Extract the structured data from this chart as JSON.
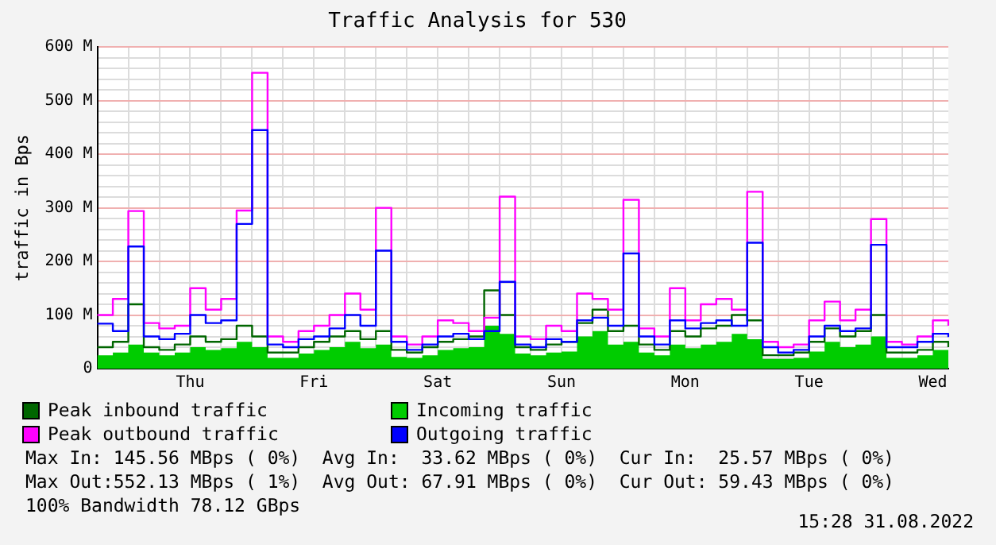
{
  "chart_data": {
    "type": "step",
    "title": "Traffic Analysis for 530",
    "ylabel": "traffic in Bps",
    "categories": [
      null,
      null,
      null,
      null,
      null,
      null,
      "Thu",
      null,
      null,
      null,
      null,
      null,
      null,
      null,
      "Fri",
      null,
      null,
      null,
      null,
      null,
      null,
      null,
      "Sat",
      null,
      null,
      null,
      null,
      null,
      null,
      null,
      "Sun",
      null,
      null,
      null,
      null,
      null,
      null,
      null,
      "Mon",
      null,
      null,
      null,
      null,
      null,
      null,
      null,
      "Tue",
      null,
      null,
      null,
      null,
      null,
      null,
      null,
      "Wed",
      null
    ],
    "ylim": [
      0,
      600
    ],
    "yticks": [
      0,
      {
        "value": 20,
        "label": null
      },
      {
        "value": 40,
        "label": null
      },
      {
        "value": 60,
        "label": null
      },
      {
        "value": 80,
        "label": null
      },
      {
        "value": 100,
        "label": "100 M"
      },
      {
        "value": 120,
        "label": null
      },
      {
        "value": 140,
        "label": null
      },
      {
        "value": 160,
        "label": null
      },
      {
        "value": 180,
        "label": null
      },
      {
        "value": 200,
        "label": "200 M"
      },
      {
        "value": 220,
        "label": null
      },
      {
        "value": 240,
        "label": null
      },
      {
        "value": 260,
        "label": null
      },
      {
        "value": 280,
        "label": null
      },
      {
        "value": 300,
        "label": "300 M"
      },
      {
        "value": 320,
        "label": null
      },
      {
        "value": 340,
        "label": null
      },
      {
        "value": 360,
        "label": null
      },
      {
        "value": 380,
        "label": null
      },
      {
        "value": 400,
        "label": "400 M"
      },
      {
        "value": 420,
        "label": null
      },
      {
        "value": 440,
        "label": null
      },
      {
        "value": 460,
        "label": null
      },
      {
        "value": 480,
        "label": null
      },
      {
        "value": 500,
        "label": "500 M"
      },
      {
        "value": 520,
        "label": null
      },
      {
        "value": 540,
        "label": null
      },
      {
        "value": 560,
        "label": null
      },
      {
        "value": 580,
        "label": null
      },
      {
        "value": 600,
        "label": "600 M"
      }
    ],
    "grid": true,
    "legend": "bottom",
    "marker": "none",
    "series": [
      {
        "name": "Peak inbound traffic",
        "color": "#006600",
        "values": [
          40,
          50,
          120,
          40,
          35,
          45,
          60,
          50,
          55,
          80,
          60,
          30,
          30,
          40,
          50,
          60,
          70,
          55,
          70,
          35,
          30,
          40,
          50,
          55,
          60,
          146,
          100,
          40,
          35,
          45,
          50,
          85,
          110,
          70,
          80,
          45,
          35,
          70,
          60,
          75,
          80,
          100,
          90,
          25,
          25,
          30,
          50,
          75,
          60,
          70,
          100,
          30,
          30,
          35,
          50,
          40
        ]
      },
      {
        "name": "Incoming traffic",
        "color": "#00cc00",
        "type": "area",
        "values": [
          25,
          30,
          45,
          30,
          25,
          30,
          40,
          35,
          38,
          50,
          40,
          20,
          20,
          28,
          35,
          40,
          50,
          38,
          45,
          22,
          20,
          25,
          35,
          38,
          40,
          80,
          65,
          28,
          25,
          30,
          32,
          60,
          70,
          45,
          50,
          30,
          25,
          45,
          38,
          45,
          50,
          65,
          55,
          18,
          18,
          20,
          32,
          50,
          40,
          45,
          60,
          20,
          20,
          25,
          35,
          26
        ]
      },
      {
        "name": "Peak outbound traffic",
        "color": "#ff00ff",
        "values": [
          100,
          130,
          294,
          85,
          75,
          80,
          150,
          110,
          130,
          295,
          552,
          60,
          50,
          70,
          80,
          100,
          140,
          110,
          300,
          60,
          45,
          60,
          90,
          85,
          70,
          95,
          321,
          60,
          55,
          80,
          70,
          140,
          130,
          110,
          315,
          75,
          60,
          150,
          90,
          120,
          130,
          110,
          330,
          50,
          40,
          45,
          90,
          125,
          90,
          110,
          279,
          50,
          45,
          60,
          90,
          80
        ]
      },
      {
        "name": "Outgoing traffic",
        "color": "#0000ff",
        "values": [
          84,
          70,
          228,
          60,
          55,
          65,
          100,
          85,
          90,
          270,
          445,
          45,
          40,
          55,
          60,
          75,
          100,
          80,
          220,
          50,
          35,
          45,
          60,
          65,
          55,
          70,
          162,
          45,
          40,
          55,
          50,
          90,
          95,
          80,
          215,
          60,
          45,
          90,
          75,
          85,
          90,
          80,
          235,
          40,
          30,
          35,
          60,
          80,
          70,
          75,
          231,
          40,
          40,
          50,
          65,
          59
        ]
      }
    ],
    "annotations": [
      "Max In: 145.56 MBps ( 0%)  Avg In:  33.62 MBps ( 0%)  Cur In:  25.57 MBps ( 0%)",
      "Max Out:552.13 MBps ( 1%)  Avg Out: 67.91 MBps ( 0%)  Cur Out: 59.43 MBps ( 0%)",
      "100% Bandwidth 78.12 GBps",
      "15:28 31.08.2022"
    ]
  }
}
